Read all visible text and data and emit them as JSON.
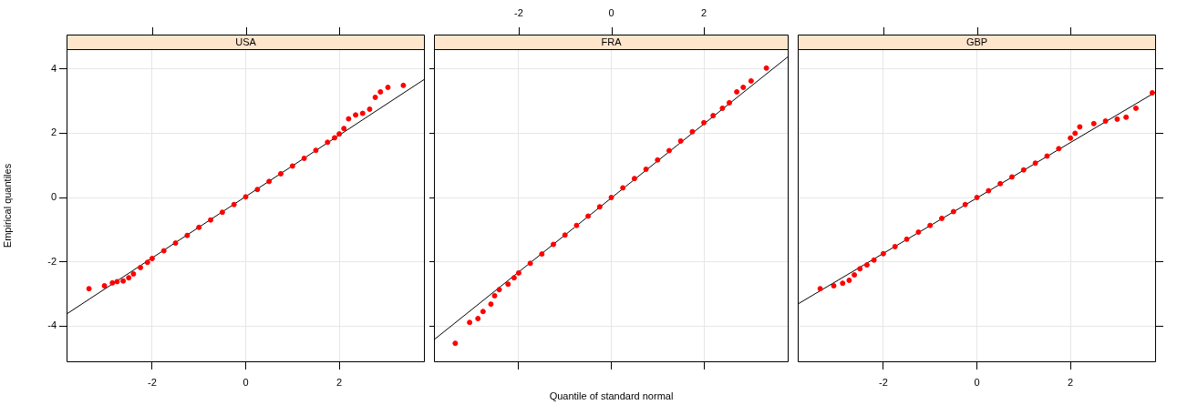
{
  "chart_data": [
    {
      "type": "scatter",
      "title": "USA",
      "ylabel": "Empirical quantiles",
      "xlim": [
        -3.83,
        3.83
      ],
      "xticks": [
        -2,
        0,
        2
      ],
      "ylim": [
        -5.13,
        4.62
      ],
      "yticks": [
        -4,
        -2,
        0,
        2,
        4
      ],
      "grid": true,
      "series": [
        {
          "color": "#ff0000",
          "marker": "circle",
          "x": [
            -3.35,
            -3.02,
            -2.85,
            -2.75,
            -2.62,
            -2.5,
            -2.4,
            -2.25,
            -2.1,
            -2.0,
            -1.75,
            -1.5,
            -1.25,
            -1.0,
            -0.75,
            -0.5,
            -0.25,
            0,
            0.25,
            0.5,
            0.75,
            1.0,
            1.25,
            1.5,
            1.75,
            1.9,
            2.0,
            2.1,
            2.2,
            2.35,
            2.5,
            2.65,
            2.77,
            2.88,
            3.04,
            3.37
          ],
          "values": [
            -2.84,
            -2.75,
            -2.66,
            -2.62,
            -2.6,
            -2.5,
            -2.38,
            -2.18,
            -2.02,
            -1.9,
            -1.66,
            -1.42,
            -1.18,
            -0.93,
            -0.7,
            -0.46,
            -0.22,
            0.02,
            0.25,
            0.5,
            0.74,
            0.98,
            1.22,
            1.47,
            1.72,
            1.86,
            1.98,
            2.15,
            2.45,
            2.57,
            2.62,
            2.75,
            3.12,
            3.29,
            3.43,
            3.49
          ]
        },
        {
          "type": "line",
          "color": "#000000",
          "marker": "none",
          "x": [
            -3.83,
            3.83
          ],
          "values": [
            -3.63,
            3.69
          ]
        }
      ]
    },
    {
      "type": "scatter",
      "title": "FRA",
      "xlabel": "Quantile of standard normal",
      "xlim": [
        -3.83,
        3.83
      ],
      "xticks": [
        -2,
        0,
        2
      ],
      "ylim": [
        -5.13,
        4.62
      ],
      "yticks": [
        {
          "value": -4,
          "label": null
        },
        {
          "value": -2,
          "label": null
        },
        {
          "value": 0,
          "label": null
        },
        {
          "value": 2,
          "label": null
        },
        {
          "value": 4,
          "label": null
        }
      ],
      "tick_labels": "x",
      "grid": true,
      "series": [
        {
          "color": "#ff0000",
          "marker": "circle",
          "x": [
            -3.37,
            -3.06,
            -2.88,
            -2.77,
            -2.6,
            -2.52,
            -2.42,
            -2.23,
            -2.1,
            -2.0,
            -1.75,
            -1.5,
            -1.25,
            -1.0,
            -0.75,
            -0.5,
            -0.25,
            0,
            0.25,
            0.5,
            0.75,
            1.0,
            1.25,
            1.5,
            1.75,
            2.0,
            2.2,
            2.4,
            2.55,
            2.71,
            2.85,
            3.02,
            3.35
          ],
          "values": [
            -4.54,
            -3.89,
            -3.77,
            -3.55,
            -3.32,
            -3.06,
            -2.87,
            -2.7,
            -2.5,
            -2.35,
            -2.05,
            -1.76,
            -1.46,
            -1.17,
            -0.87,
            -0.58,
            -0.29,
            0.0,
            0.3,
            0.59,
            0.88,
            1.17,
            1.46,
            1.76,
            2.05,
            2.33,
            2.55,
            2.78,
            2.95,
            3.29,
            3.43,
            3.63,
            4.03
          ]
        },
        {
          "type": "line",
          "color": "#000000",
          "marker": "none",
          "x": [
            -3.83,
            3.83
          ],
          "values": [
            -4.43,
            4.4
          ]
        }
      ]
    },
    {
      "type": "scatter",
      "title": "GBP",
      "xlim": [
        -3.83,
        3.83
      ],
      "xticks": [
        -2,
        0,
        2
      ],
      "ylim": [
        -5.13,
        4.62
      ],
      "yticks": [
        {
          "value": -4,
          "label": null
        },
        {
          "value": -2,
          "label": null
        },
        {
          "value": 0,
          "label": null
        },
        {
          "value": 2,
          "label": null
        },
        {
          "value": 4,
          "label": null
        }
      ],
      "tick_labels": "x",
      "grid": true,
      "series": [
        {
          "color": "#ff0000",
          "marker": "circle",
          "x": [
            -3.35,
            -3.06,
            -2.87,
            -2.73,
            -2.62,
            -2.5,
            -2.35,
            -2.2,
            -2.0,
            -1.75,
            -1.5,
            -1.25,
            -1.0,
            -0.75,
            -0.5,
            -0.25,
            0,
            0.25,
            0.5,
            0.75,
            1.0,
            1.25,
            1.5,
            1.75,
            2.0,
            2.1,
            2.2,
            2.5,
            2.75,
            3.0,
            3.19,
            3.4,
            3.75
          ],
          "values": [
            -2.84,
            -2.75,
            -2.67,
            -2.58,
            -2.41,
            -2.22,
            -2.1,
            -1.95,
            -1.75,
            -1.53,
            -1.3,
            -1.08,
            -0.87,
            -0.65,
            -0.44,
            -0.22,
            0.0,
            0.21,
            0.43,
            0.64,
            0.86,
            1.07,
            1.29,
            1.52,
            1.85,
            2.0,
            2.2,
            2.3,
            2.38,
            2.44,
            2.5,
            2.78,
            3.26
          ]
        },
        {
          "type": "line",
          "color": "#000000",
          "marker": "none",
          "x": [
            -3.83,
            3.83
          ],
          "values": [
            -3.32,
            3.29
          ]
        }
      ]
    }
  ]
}
